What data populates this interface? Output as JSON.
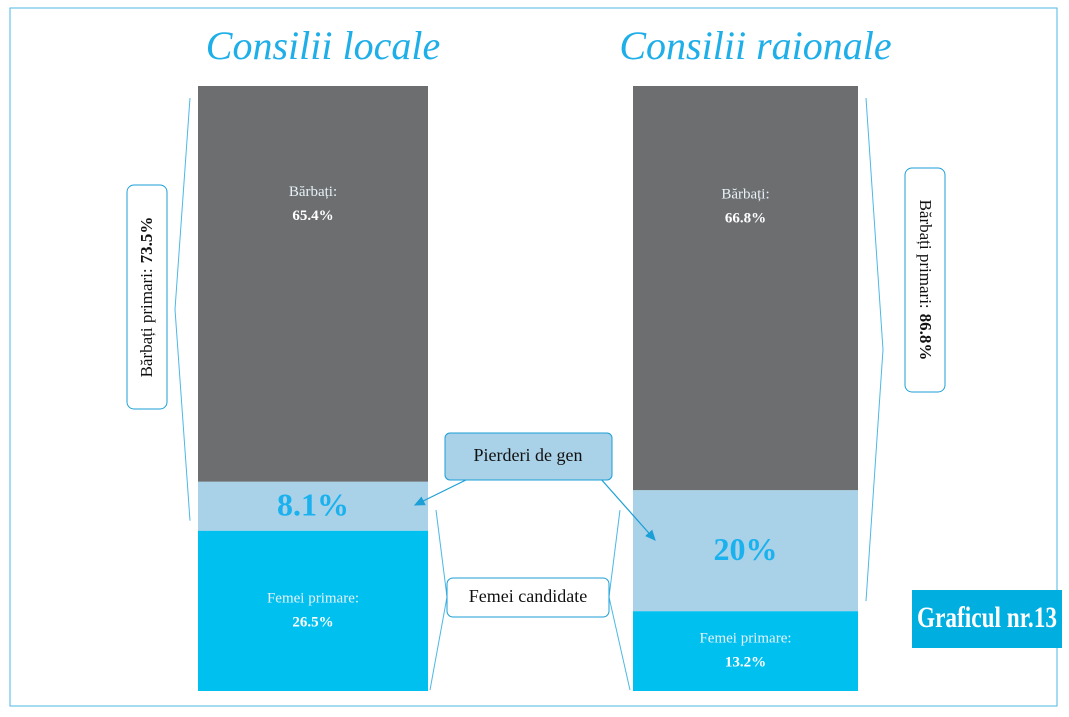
{
  "chart_data": {
    "type": "stacked_bar",
    "categories": [
      "Consilii locale",
      "Consilii raionale"
    ],
    "ylim": [
      0,
      100
    ],
    "series": [
      {
        "name": "Femei primare:",
        "color": "#00c0f0",
        "values": [
          26.5,
          13.2
        ],
        "value_labels": [
          "26.5%",
          "13.2%"
        ]
      },
      {
        "name": "Pierderi de gen",
        "color": "#a9d1e7",
        "values": [
          8.1,
          20
        ],
        "value_labels": [
          "8.1%",
          "20%"
        ]
      },
      {
        "name": "Bărbați:",
        "color": "#6d6e70",
        "values": [
          65.4,
          66.8
        ],
        "value_labels": [
          "65.4%",
          "66.8%"
        ]
      }
    ],
    "annotations": [
      {
        "text": "Bărbați primari:",
        "value": 73.5,
        "label": "73.5%"
      },
      {
        "text": "Bărbați primari:",
        "value": 86.8,
        "label": "86.8%"
      },
      {
        "text": "Femei candidate"
      },
      {
        "text": "Graficul nr.13"
      }
    ]
  }
}
